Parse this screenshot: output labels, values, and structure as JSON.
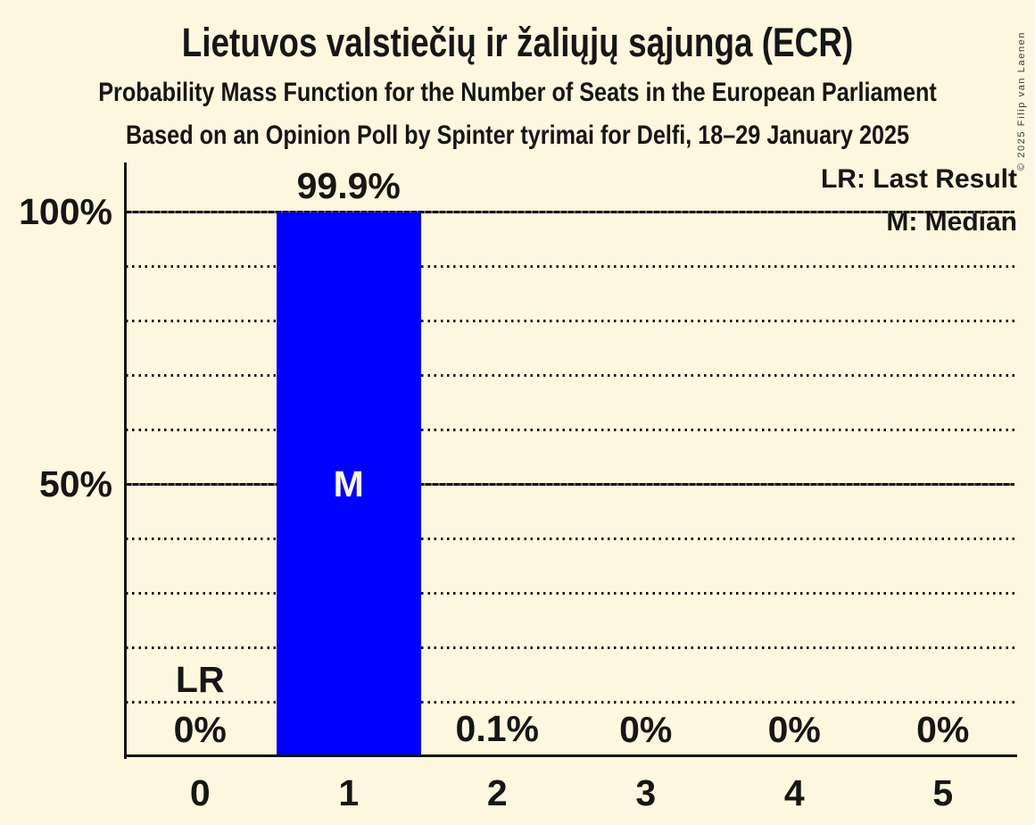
{
  "header": {
    "title": "Lietuvos valstiečių ir žaliųjų sąjunga (ECR)",
    "subtitle_line1": "Probability Mass Function for the Number of Seats in the European Parliament",
    "subtitle_line2": "Based on an Opinion Poll by Spinter tyrimai for Delfi, 18–29 January 2025"
  },
  "legend": {
    "last_result": "LR: Last Result",
    "median": "M: Median"
  },
  "copyright": "© 2025 Filip van Laenen",
  "chart_data": {
    "type": "bar",
    "title": "Lietuvos valstiečių ir žaliųjų sąjunga (ECR)",
    "categories": [
      "0",
      "1",
      "2",
      "3",
      "4",
      "5"
    ],
    "values": [
      0,
      99.9,
      0.1,
      0,
      0,
      0
    ],
    "value_labels": [
      "0%",
      "99.9%",
      "0.1%",
      "0%",
      "0%",
      "0%"
    ],
    "ylim": [
      0,
      100
    ],
    "yticks": [
      {
        "value": 100,
        "label": "100%"
      },
      {
        "value": 50,
        "label": "50%"
      }
    ],
    "gridlines_solid": [
      50,
      100
    ],
    "gridlines_dotted": [
      10,
      20,
      30,
      40,
      60,
      70,
      80,
      90
    ],
    "median": {
      "seat": "1",
      "marker": "M"
    },
    "last_result": {
      "seat": "0",
      "marker": "LR"
    },
    "bar_color": "#0000ff",
    "background_color": "#fcf7de",
    "text_color": "#161616",
    "median_marker_color": "#fcf7de",
    "grid": true,
    "legend_position": "top-right"
  }
}
